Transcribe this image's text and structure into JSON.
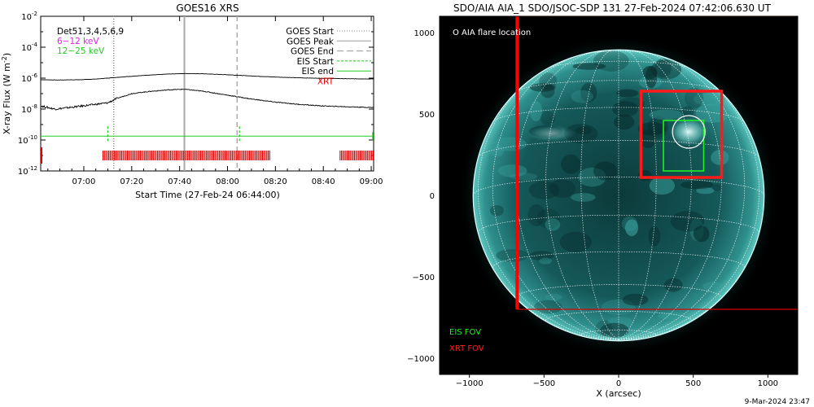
{
  "footer": {
    "timestamp": "9-Mar-2024 23:47"
  },
  "chart_data": [
    {
      "type": "line",
      "title": "GOES16 XRS",
      "xlabel": "Start Time (27-Feb-24 06:44:00)",
      "ylabel": "X-ray Flux (W m⁻²)",
      "ylabel_unit_exp": "-2",
      "ylabel_main": "X-ray Flux (W m",
      "log_y": true,
      "ylim_exp": [
        -12,
        -2
      ],
      "y_tick_labels": [
        {
          "base": "10",
          "exp": "-2",
          "value_exp": -2
        },
        {
          "base": "10",
          "exp": "-4",
          "value_exp": -4
        },
        {
          "base": "10",
          "exp": "-6",
          "value_exp": -6
        },
        {
          "base": "10",
          "exp": "-8",
          "value_exp": -8
        },
        {
          "base": "10",
          "exp": "-10",
          "value_exp": -10
        },
        {
          "base": "10",
          "exp": "-12",
          "value_exp": -12
        }
      ],
      "xlim_min": [
        -2,
        137
      ],
      "x_ticks": [
        {
          "label": "07:00",
          "min": 16
        },
        {
          "label": "07:20",
          "min": 36
        },
        {
          "label": "07:40",
          "min": 56
        },
        {
          "label": "08:00",
          "min": 76
        },
        {
          "label": "08:20",
          "min": 96
        },
        {
          "label": "08:40",
          "min": 116
        },
        {
          "label": "09:00",
          "min": 136
        }
      ],
      "legend_left": [
        {
          "text": "Det51,3,4,5,6,9",
          "color": "#000000"
        },
        {
          "text": "6−12 keV",
          "color": "#e020e0"
        },
        {
          "text": "12−25 keV",
          "color": "#22cc22"
        }
      ],
      "legend_right": [
        {
          "text": "GOES Start",
          "color": "#000000",
          "style": "dotted"
        },
        {
          "text": "GOES Peak",
          "color": "#000000",
          "style": "solid-gray"
        },
        {
          "text": "GOES End",
          "color": "#000000",
          "style": "dashed"
        },
        {
          "text": "EIS Start",
          "color": "#000000",
          "line": "#22cc22",
          "style": "dashed-green"
        },
        {
          "text": "EIS end",
          "color": "#000000",
          "line": "#22cc22",
          "style": "solid-green"
        },
        {
          "text": "XRT",
          "color": "#e00000",
          "style": "none"
        }
      ],
      "vlines": [
        {
          "name": "goes-start",
          "min": 28.5,
          "style": "dotted",
          "color": "#888888"
        },
        {
          "name": "goes-peak",
          "min": 58,
          "style": "solid",
          "color": "#aaaaaa"
        },
        {
          "name": "goes-end",
          "min": 80,
          "style": "dashed",
          "color": "#aaaaaa"
        }
      ],
      "series": [
        {
          "name": "GOES long channel",
          "color": "#000000",
          "points": [
            [
              -2,
              -6.1
            ],
            [
              5,
              -6.12
            ],
            [
              15,
              -6.1
            ],
            [
              22,
              -6.05
            ],
            [
              28,
              -5.97
            ],
            [
              36,
              -5.88
            ],
            [
              44,
              -5.8
            ],
            [
              50,
              -5.74
            ],
            [
              58,
              -5.7
            ],
            [
              66,
              -5.72
            ],
            [
              76,
              -5.78
            ],
            [
              86,
              -5.86
            ],
            [
              96,
              -5.93
            ],
            [
              106,
              -5.98
            ],
            [
              116,
              -6.01
            ],
            [
              126,
              -6.04
            ],
            [
              137,
              -6.05
            ]
          ]
        },
        {
          "name": "GOES short channel",
          "color": "#000000",
          "points": [
            [
              -2,
              -7.8
            ],
            [
              4,
              -8.0
            ],
            [
              10,
              -7.9
            ],
            [
              18,
              -7.75
            ],
            [
              26,
              -7.6
            ],
            [
              30,
              -7.3
            ],
            [
              36,
              -7.0
            ],
            [
              44,
              -6.85
            ],
            [
              52,
              -6.75
            ],
            [
              58,
              -6.72
            ],
            [
              66,
              -6.85
            ],
            [
              76,
              -7.1
            ],
            [
              86,
              -7.35
            ],
            [
              96,
              -7.55
            ],
            [
              106,
              -7.7
            ],
            [
              116,
              -7.8
            ],
            [
              126,
              -7.85
            ],
            [
              137,
              -7.9
            ]
          ]
        }
      ],
      "eis_level_exp": -9.75,
      "eis_markers_min": [
        26,
        81
      ],
      "xrt_level_exp": -11.0,
      "xrt_segments_min": [
        [
          24,
          94
        ],
        [
          123,
          137
        ]
      ],
      "xrt_left_marker_min": -2
    },
    {
      "type": "scatter",
      "title": "SDO/AIA AIA_1 SDO/JSOC-SDP 131 27-Feb-2024 07:42:06.630 UT",
      "xlabel": "X (arcsec)",
      "xlim": [
        -1200,
        1200
      ],
      "ylim": [
        -1100,
        1100
      ],
      "x_ticks": [
        -1000,
        -500,
        0,
        500,
        1000
      ],
      "y_ticks": [
        -1000,
        -500,
        0,
        500,
        1000
      ],
      "legend": [
        {
          "text": "O AIA flare location",
          "color": "#ffffff"
        },
        {
          "text": "EIS FOV",
          "color": "#22ee22"
        },
        {
          "text": "XRT FOV",
          "color": "#ff2222"
        }
      ],
      "sun_radius_arcsec": 975,
      "flare_location": [
        470,
        390
      ],
      "eis_fov": [
        300,
        150,
        570,
        460
      ],
      "xrt_fov_small": [
        150,
        110,
        690,
        640
      ],
      "xrt_fov_large": [
        -680,
        -700,
        1200,
        1100
      ]
    }
  ]
}
